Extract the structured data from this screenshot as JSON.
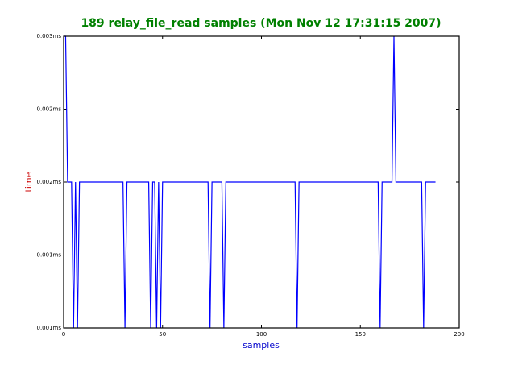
{
  "chart_data": {
    "type": "line",
    "title": "189 relay_file_read samples (Mon Nov 12 17:31:15 2007)",
    "xlabel": "samples",
    "ylabel": "time",
    "xlim": [
      0,
      200
    ],
    "xticks": [
      0,
      50,
      100,
      150,
      200
    ],
    "ylim": [
      0.0008,
      0.0028
    ],
    "yticks": [
      {
        "value": 0.0008,
        "label": "0.001ms"
      },
      {
        "value": 0.0013,
        "label": "0.001ms"
      },
      {
        "value": 0.0018,
        "label": "0.002ms"
      },
      {
        "value": 0.0023,
        "label": "0.002ms"
      },
      {
        "value": 0.0028,
        "label": "0.003ms"
      }
    ],
    "color": "#0000ff",
    "x": [
      0,
      1,
      2,
      3,
      4,
      5,
      6,
      7,
      8,
      9,
      10,
      11,
      12,
      13,
      14,
      15,
      16,
      17,
      18,
      19,
      20,
      21,
      22,
      23,
      24,
      25,
      26,
      27,
      28,
      29,
      30,
      31,
      32,
      33,
      34,
      35,
      36,
      37,
      38,
      39,
      40,
      41,
      42,
      43,
      44,
      45,
      46,
      47,
      48,
      49,
      50,
      51,
      52,
      53,
      54,
      55,
      56,
      57,
      58,
      59,
      60,
      61,
      62,
      63,
      64,
      65,
      66,
      67,
      68,
      69,
      70,
      71,
      72,
      73,
      74,
      75,
      76,
      77,
      78,
      79,
      80,
      81,
      82,
      83,
      84,
      85,
      86,
      87,
      88,
      89,
      90,
      91,
      92,
      93,
      94,
      95,
      96,
      97,
      98,
      99,
      100,
      101,
      102,
      103,
      104,
      105,
      106,
      107,
      108,
      109,
      110,
      111,
      112,
      113,
      114,
      115,
      116,
      117,
      118,
      119,
      120,
      121,
      122,
      123,
      124,
      125,
      126,
      127,
      128,
      129,
      130,
      131,
      132,
      133,
      134,
      135,
      136,
      137,
      138,
      139,
      140,
      141,
      142,
      143,
      144,
      145,
      146,
      147,
      148,
      149,
      150,
      151,
      152,
      153,
      154,
      155,
      156,
      157,
      158,
      159,
      160,
      161,
      162,
      163,
      164,
      165,
      166,
      167,
      168,
      169,
      170,
      171,
      172,
      173,
      174,
      175,
      176,
      177,
      178,
      179,
      180,
      181,
      182,
      183,
      184,
      185,
      186,
      187,
      188
    ],
    "values": [
      0.0028,
      0.0028,
      0.0018,
      0.0018,
      0.0018,
      0.0008,
      0.0018,
      0.0008,
      0.0018,
      0.0018,
      0.0018,
      0.0018,
      0.0018,
      0.0018,
      0.0018,
      0.0018,
      0.0018,
      0.0018,
      0.0018,
      0.0018,
      0.0018,
      0.0018,
      0.0018,
      0.0018,
      0.0018,
      0.0018,
      0.0018,
      0.0018,
      0.0018,
      0.0018,
      0.0018,
      0.0008,
      0.0018,
      0.0018,
      0.0018,
      0.0018,
      0.0018,
      0.0018,
      0.0018,
      0.0018,
      0.0018,
      0.0018,
      0.0018,
      0.0018,
      0.0008,
      0.0018,
      0.0018,
      0.0008,
      0.0018,
      0.0008,
      0.0018,
      0.0018,
      0.0018,
      0.0018,
      0.0018,
      0.0018,
      0.0018,
      0.0018,
      0.0018,
      0.0018,
      0.0018,
      0.0018,
      0.0018,
      0.0018,
      0.0018,
      0.0018,
      0.0018,
      0.0018,
      0.0018,
      0.0018,
      0.0018,
      0.0018,
      0.0018,
      0.0018,
      0.0008,
      0.0018,
      0.0018,
      0.0018,
      0.0018,
      0.0018,
      0.0018,
      0.0008,
      0.0018,
      0.0018,
      0.0018,
      0.0018,
      0.0018,
      0.0018,
      0.0018,
      0.0018,
      0.0018,
      0.0018,
      0.0018,
      0.0018,
      0.0018,
      0.0018,
      0.0018,
      0.0018,
      0.0018,
      0.0018,
      0.0018,
      0.0018,
      0.0018,
      0.0018,
      0.0018,
      0.0018,
      0.0018,
      0.0018,
      0.0018,
      0.0018,
      0.0018,
      0.0018,
      0.0018,
      0.0018,
      0.0018,
      0.0018,
      0.0018,
      0.0018,
      0.0008,
      0.0018,
      0.0018,
      0.0018,
      0.0018,
      0.0018,
      0.0018,
      0.0018,
      0.0018,
      0.0018,
      0.0018,
      0.0018,
      0.0018,
      0.0018,
      0.0018,
      0.0018,
      0.0018,
      0.0018,
      0.0018,
      0.0018,
      0.0018,
      0.0018,
      0.0018,
      0.0018,
      0.0018,
      0.0018,
      0.0018,
      0.0018,
      0.0018,
      0.0018,
      0.0018,
      0.0018,
      0.0018,
      0.0018,
      0.0018,
      0.0018,
      0.0018,
      0.0018,
      0.0018,
      0.0018,
      0.0018,
      0.0018,
      0.0008,
      0.0018,
      0.0018,
      0.0018,
      0.0018,
      0.0018,
      0.0018,
      0.0028,
      0.0018,
      0.0018,
      0.0018,
      0.0018,
      0.0018,
      0.0018,
      0.0018,
      0.0018,
      0.0018,
      0.0018,
      0.0018,
      0.0018,
      0.0018,
      0.0018,
      0.0008,
      0.0018,
      0.0018,
      0.0018,
      0.0018,
      0.0018,
      0.0018
    ]
  }
}
